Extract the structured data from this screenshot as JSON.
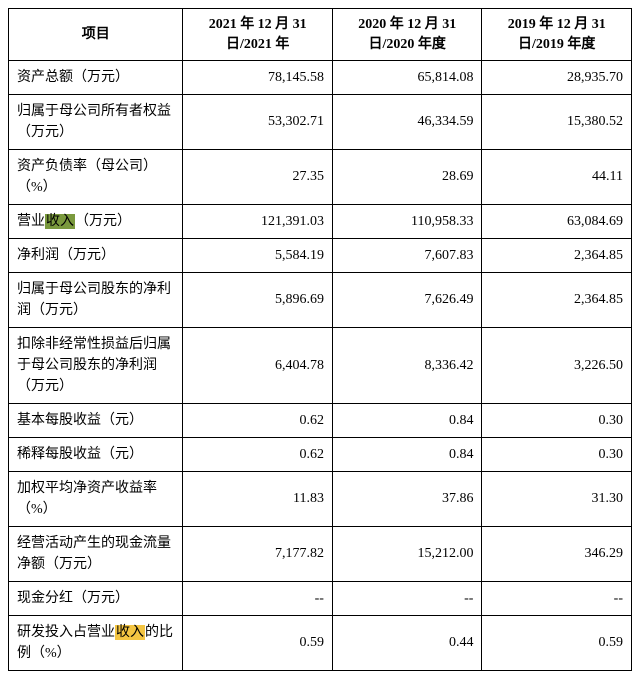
{
  "headers": {
    "c0": "项目",
    "c1": "2021 年 12 月 31 日/2021 年",
    "c2": "2020 年 12 月 31 日/2020 年度",
    "c3": "2019 年 12 月 31 日/2019 年度"
  },
  "rows": [
    {
      "label_plain": "资产总额（万元）",
      "v1": "78,145.58",
      "v2": "65,814.08",
      "v3": "28,935.70"
    },
    {
      "label_plain": "归属于母公司所有者权益（万元）",
      "v1": "53,302.71",
      "v2": "46,334.59",
      "v3": "15,380.52"
    },
    {
      "label_plain": "资产负债率（母公司）（%）",
      "v1": "27.35",
      "v2": "28.69",
      "v3": "44.11"
    },
    {
      "label_pre": "营业",
      "hl_text": "收入",
      "hl_class": "hl-green",
      "label_post": "（万元）",
      "v1": "121,391.03",
      "v2": "110,958.33",
      "v3": "63,084.69"
    },
    {
      "label_plain": "净利润（万元）",
      "v1": "5,584.19",
      "v2": "7,607.83",
      "v3": "2,364.85"
    },
    {
      "label_plain": "归属于母公司股东的净利润（万元）",
      "v1": "5,896.69",
      "v2": "7,626.49",
      "v3": "2,364.85"
    },
    {
      "label_plain": "扣除非经常性损益后归属于母公司股东的净利润（万元）",
      "v1": "6,404.78",
      "v2": "8,336.42",
      "v3": "3,226.50"
    },
    {
      "label_plain": "基本每股收益（元）",
      "v1": "0.62",
      "v2": "0.84",
      "v3": "0.30"
    },
    {
      "label_plain": "稀释每股收益（元）",
      "v1": "0.62",
      "v2": "0.84",
      "v3": "0.30"
    },
    {
      "label_plain": "加权平均净资产收益率（%）",
      "v1": "11.83",
      "v2": "37.86",
      "v3": "31.30"
    },
    {
      "label_plain": "经营活动产生的现金流量净额（万元）",
      "v1": "7,177.82",
      "v2": "15,212.00",
      "v3": "346.29"
    },
    {
      "label_plain": "现金分红（万元）",
      "v1": "--",
      "v2": "--",
      "v3": "--"
    },
    {
      "label_pre": "研发投入占营业",
      "hl_text": "收入",
      "hl_class": "hl-yellow",
      "label_post": "的比例（%）",
      "v1": "0.59",
      "v2": "0.44",
      "v3": "0.59"
    }
  ]
}
